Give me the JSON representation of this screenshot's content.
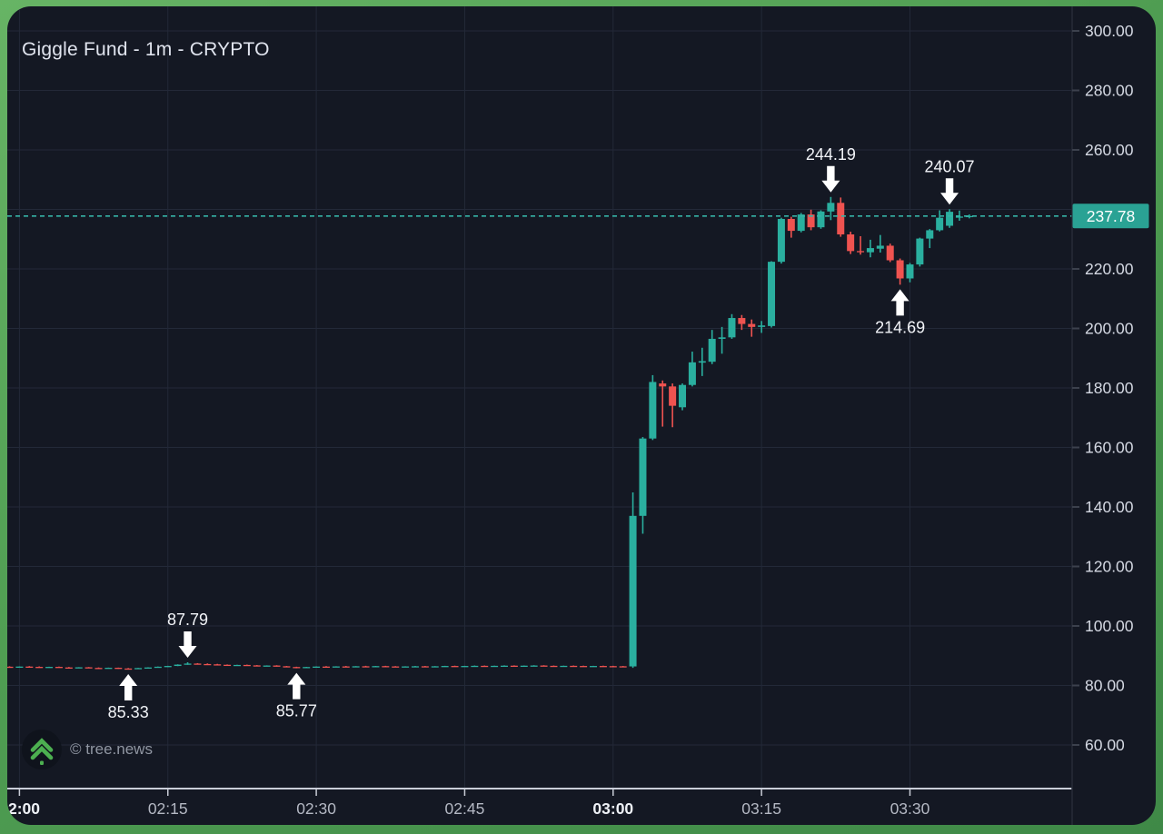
{
  "header": {
    "title": "Giggle Fund - 1m - CRYPTO"
  },
  "watermark": {
    "copyright": "© tree.news",
    "logo_icon": "double-chevron-up-icon"
  },
  "colors": {
    "frame_green": "#4f9d52",
    "background": "#141823",
    "grid": "#232938",
    "up_candle": "#2aaf9f",
    "down_candle": "#ef5350",
    "price_line": "#35b3a6",
    "price_label_bg": "#2aa294",
    "price_label_text": "#ffffff",
    "axis_text": "#d5d9e3",
    "time_text": "#b4b8c3",
    "time_text_bold": "#eef1f6",
    "annotation_text": "#f2f4f8",
    "arrow": "#ffffff",
    "axis_line": "#c9cdd7",
    "logo_green": "#4caf50"
  },
  "price_axis": {
    "current_price_label": "237.78",
    "labels": [
      {
        "label": "300.00",
        "value": 300
      },
      {
        "label": "280.00",
        "value": 280
      },
      {
        "label": "260.00",
        "value": 260
      },
      {
        "label": "220.00",
        "value": 220
      },
      {
        "label": "200.00",
        "value": 200
      },
      {
        "label": "180.00",
        "value": 180
      },
      {
        "label": "160.00",
        "value": 160
      },
      {
        "label": "140.00",
        "value": 140
      },
      {
        "label": "120.00",
        "value": 120
      },
      {
        "label": "100.00",
        "value": 100
      },
      {
        "label": "80.00",
        "value": 80
      },
      {
        "label": "60.00",
        "value": 60
      }
    ]
  },
  "time_axis": {
    "labels": [
      {
        "label": "2:00",
        "time": "02:00",
        "bold": true,
        "align": "start"
      },
      {
        "label": "02:15",
        "time": "02:15",
        "bold": false,
        "align": "middle"
      },
      {
        "label": "02:30",
        "time": "02:30",
        "bold": false,
        "align": "middle"
      },
      {
        "label": "02:45",
        "time": "02:45",
        "bold": false,
        "align": "middle"
      },
      {
        "label": "03:00",
        "time": "03:00",
        "bold": true,
        "align": "middle"
      },
      {
        "label": "03:15",
        "time": "03:15",
        "bold": false,
        "align": "middle"
      },
      {
        "label": "03:30",
        "time": "03:30",
        "bold": false,
        "align": "middle"
      }
    ]
  },
  "chart_data": {
    "type": "candlestick",
    "title": "Giggle Fund - 1m - CRYPTO",
    "symbol": "Giggle Fund",
    "interval": "1m",
    "exchange": "CRYPTO",
    "current_price": 237.78,
    "ylim": [
      45,
      308
    ],
    "y_gridlines": [
      60,
      80,
      100,
      120,
      140,
      160,
      180,
      200,
      220,
      240,
      260,
      280,
      300
    ],
    "grid": true,
    "legend_position": "none",
    "annotations": [
      {
        "value": "85.33",
        "price": 85.33,
        "time": "02:11",
        "arrow": "up",
        "label_position": "below"
      },
      {
        "value": "87.79",
        "price": 87.79,
        "time": "02:17",
        "arrow": "down",
        "label_position": "above"
      },
      {
        "value": "85.77",
        "price": 85.77,
        "time": "02:28",
        "arrow": "up",
        "label_position": "below"
      },
      {
        "value": "244.19",
        "price": 244.19,
        "time": "03:22",
        "arrow": "down",
        "label_position": "above"
      },
      {
        "value": "214.69",
        "price": 214.69,
        "time": "03:29",
        "arrow": "up",
        "label_position": "below"
      },
      {
        "value": "240.07",
        "price": 240.07,
        "time": "03:34",
        "arrow": "down",
        "label_position": "above"
      }
    ],
    "columns": [
      "time",
      "open",
      "high",
      "low",
      "close"
    ],
    "candles": [
      [
        "01:59",
        86.3,
        86.45,
        86.1,
        86.2
      ],
      [
        "02:00",
        86.2,
        86.4,
        86.05,
        86.35
      ],
      [
        "02:01",
        86.35,
        86.5,
        86.15,
        86.25
      ],
      [
        "02:02",
        86.25,
        86.4,
        86.0,
        86.1
      ],
      [
        "02:03",
        86.1,
        86.3,
        85.95,
        86.25
      ],
      [
        "02:04",
        86.25,
        86.35,
        86.0,
        86.05
      ],
      [
        "02:05",
        86.05,
        86.2,
        85.85,
        85.95
      ],
      [
        "02:06",
        85.95,
        86.15,
        85.8,
        86.1
      ],
      [
        "02:07",
        86.1,
        86.2,
        85.85,
        85.9
      ],
      [
        "02:08",
        85.9,
        86.05,
        85.7,
        85.8
      ],
      [
        "02:09",
        85.8,
        86.0,
        85.65,
        85.95
      ],
      [
        "02:10",
        85.95,
        86.0,
        85.6,
        85.7
      ],
      [
        "02:11",
        85.7,
        85.85,
        85.33,
        85.55
      ],
      [
        "02:12",
        85.55,
        85.9,
        85.5,
        85.85
      ],
      [
        "02:13",
        85.85,
        86.1,
        85.75,
        86.05
      ],
      [
        "02:14",
        86.05,
        86.35,
        86.0,
        86.3
      ],
      [
        "02:15",
        86.3,
        86.6,
        86.2,
        86.55
      ],
      [
        "02:16",
        86.55,
        87.1,
        86.5,
        87.0
      ],
      [
        "02:17",
        87.0,
        87.79,
        86.95,
        87.35
      ],
      [
        "02:18",
        87.35,
        87.5,
        87.1,
        87.2
      ],
      [
        "02:19",
        87.2,
        87.4,
        87.0,
        87.1
      ],
      [
        "02:20",
        87.1,
        87.25,
        86.85,
        86.95
      ],
      [
        "02:21",
        86.95,
        87.05,
        86.7,
        86.8
      ],
      [
        "02:22",
        86.8,
        86.95,
        86.6,
        86.9
      ],
      [
        "02:23",
        86.9,
        87.0,
        86.65,
        86.75
      ],
      [
        "02:24",
        86.75,
        86.85,
        86.5,
        86.6
      ],
      [
        "02:25",
        86.6,
        86.75,
        86.4,
        86.7
      ],
      [
        "02:26",
        86.7,
        86.8,
        86.35,
        86.45
      ],
      [
        "02:27",
        86.45,
        86.55,
        86.1,
        86.2
      ],
      [
        "02:28",
        86.2,
        86.3,
        85.77,
        85.95
      ],
      [
        "02:29",
        85.95,
        86.25,
        85.9,
        86.2
      ],
      [
        "02:30",
        86.2,
        86.4,
        86.1,
        86.35
      ],
      [
        "02:31",
        86.35,
        86.5,
        86.2,
        86.3
      ],
      [
        "02:32",
        86.3,
        86.45,
        86.15,
        86.4
      ],
      [
        "02:33",
        86.4,
        86.55,
        86.25,
        86.35
      ],
      [
        "02:34",
        86.35,
        86.5,
        86.2,
        86.45
      ],
      [
        "02:35",
        86.45,
        86.6,
        86.3,
        86.4
      ],
      [
        "02:36",
        86.4,
        86.55,
        86.25,
        86.5
      ],
      [
        "02:37",
        86.5,
        86.6,
        86.3,
        86.4
      ],
      [
        "02:38",
        86.4,
        86.5,
        86.2,
        86.3
      ],
      [
        "02:39",
        86.3,
        86.45,
        86.15,
        86.4
      ],
      [
        "02:40",
        86.4,
        86.55,
        86.25,
        86.45
      ],
      [
        "02:41",
        86.45,
        86.55,
        86.3,
        86.35
      ],
      [
        "02:42",
        86.35,
        86.5,
        86.2,
        86.45
      ],
      [
        "02:43",
        86.45,
        86.6,
        86.35,
        86.55
      ],
      [
        "02:44",
        86.55,
        86.65,
        86.4,
        86.5
      ],
      [
        "02:45",
        86.5,
        86.6,
        86.35,
        86.55
      ],
      [
        "02:46",
        86.55,
        86.7,
        86.45,
        86.6
      ],
      [
        "02:47",
        86.6,
        86.7,
        86.4,
        86.5
      ],
      [
        "02:48",
        86.5,
        86.65,
        86.35,
        86.6
      ],
      [
        "02:49",
        86.6,
        86.75,
        86.5,
        86.65
      ],
      [
        "02:50",
        86.65,
        86.75,
        86.45,
        86.55
      ],
      [
        "02:51",
        86.55,
        86.7,
        86.4,
        86.65
      ],
      [
        "02:52",
        86.65,
        86.8,
        86.55,
        86.7
      ],
      [
        "02:53",
        86.7,
        86.8,
        86.5,
        86.6
      ],
      [
        "02:54",
        86.6,
        86.7,
        86.4,
        86.5
      ],
      [
        "02:55",
        86.5,
        86.65,
        86.35,
        86.6
      ],
      [
        "02:56",
        86.6,
        86.7,
        86.45,
        86.55
      ],
      [
        "02:57",
        86.55,
        86.65,
        86.35,
        86.45
      ],
      [
        "02:58",
        86.45,
        86.6,
        86.3,
        86.55
      ],
      [
        "02:59",
        86.55,
        86.65,
        86.4,
        86.5
      ],
      [
        "03:00",
        86.5,
        86.6,
        86.35,
        86.45
      ],
      [
        "03:01",
        86.45,
        86.55,
        86.3,
        86.4
      ],
      [
        "03:02",
        86.4,
        144.9,
        85.9,
        137.0
      ],
      [
        "03:03",
        137.0,
        163.5,
        131.0,
        163.0
      ],
      [
        "03:04",
        163.0,
        184.3,
        162.5,
        182.0
      ],
      [
        "03:05",
        181.5,
        182.5,
        167.0,
        180.5
      ],
      [
        "03:06",
        180.5,
        181.5,
        166.8,
        174.0
      ],
      [
        "03:07",
        173.5,
        181.5,
        172.5,
        181.0
      ],
      [
        "03:08",
        181.0,
        192.2,
        180.5,
        188.6
      ],
      [
        "03:09",
        188.5,
        193.5,
        184.0,
        189.0
      ],
      [
        "03:10",
        188.8,
        199.5,
        188.0,
        196.5
      ],
      [
        "03:11",
        196.5,
        200.5,
        191.5,
        197.0
      ],
      [
        "03:12",
        197.0,
        204.8,
        196.5,
        203.5
      ],
      [
        "03:13",
        203.5,
        204.5,
        199.5,
        201.5
      ],
      [
        "03:14",
        201.5,
        203.0,
        197.2,
        200.5
      ],
      [
        "03:15",
        200.5,
        202.5,
        198.5,
        201.0
      ],
      [
        "03:16",
        200.8,
        222.6,
        200.3,
        222.4
      ],
      [
        "03:17",
        222.4,
        237.2,
        221.8,
        236.8
      ],
      [
        "03:18",
        236.8,
        237.5,
        230.5,
        232.8
      ],
      [
        "03:19",
        232.8,
        238.8,
        232.3,
        238.3
      ],
      [
        "03:20",
        238.3,
        239.9,
        233.0,
        234.0
      ],
      [
        "03:21",
        234.0,
        239.7,
        233.5,
        239.3
      ],
      [
        "03:22",
        239.3,
        244.19,
        236.4,
        242.2
      ],
      [
        "03:23",
        242.2,
        244.0,
        230.8,
        231.6
      ],
      [
        "03:24",
        231.6,
        232.5,
        225.0,
        226.0
      ],
      [
        "03:25",
        226.0,
        231.0,
        224.8,
        225.6
      ],
      [
        "03:26",
        225.6,
        229.8,
        223.9,
        227.0
      ],
      [
        "03:27",
        226.8,
        231.4,
        225.5,
        227.8
      ],
      [
        "03:28",
        227.8,
        228.5,
        222.3,
        222.9
      ],
      [
        "03:29",
        222.9,
        223.5,
        214.69,
        216.8
      ],
      [
        "03:30",
        216.8,
        222.0,
        215.5,
        221.5
      ],
      [
        "03:31",
        221.5,
        230.5,
        220.8,
        230.2
      ],
      [
        "03:32",
        230.2,
        233.4,
        227.0,
        233.0
      ],
      [
        "03:33",
        233.0,
        239.7,
        232.6,
        237.2
      ],
      [
        "03:34",
        234.5,
        240.07,
        233.8,
        239.2
      ],
      [
        "03:35",
        237.3,
        239.6,
        236.2,
        237.6
      ],
      [
        "03:36",
        237.6,
        238.3,
        237.0,
        237.78
      ]
    ]
  }
}
